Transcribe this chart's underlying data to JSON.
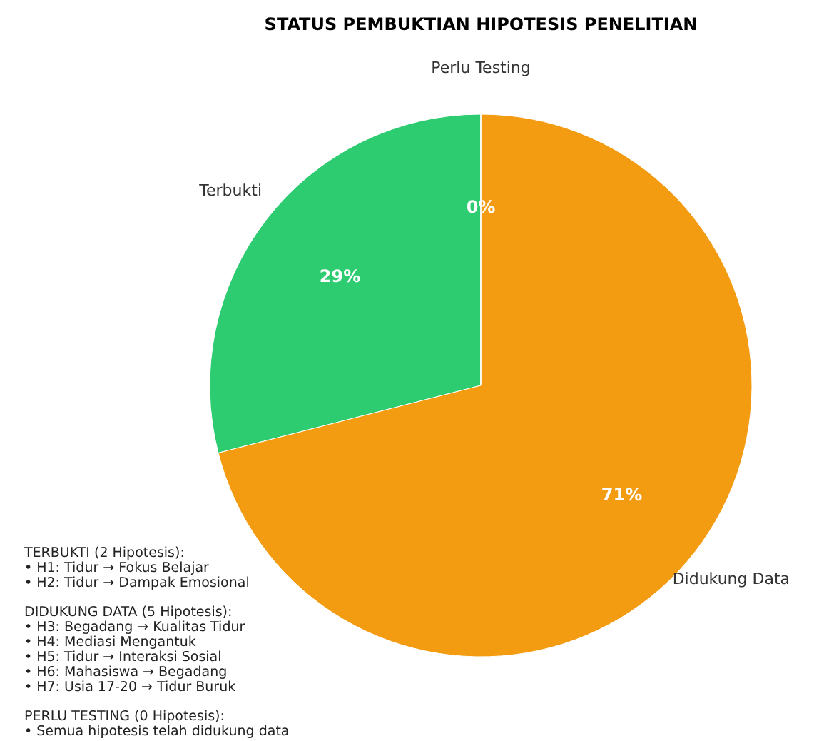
{
  "chart_data": {
    "type": "pie",
    "title": "STATUS PEMBUKTIAN HIPOTESIS PENELITIAN",
    "categories": [
      "Terbukti",
      "Didukung Data",
      "Perlu Testing"
    ],
    "values": [
      29,
      71,
      0
    ],
    "colors": [
      "#2ecc71",
      "#f39c12",
      "#e74c3c"
    ],
    "value_labels": [
      "29%",
      "71%",
      "0%"
    ],
    "legend": false,
    "annotations": [
      "TERBUKTI (2 Hipotesis):\n• H1: Tidur → Fokus Belajar\n• H2: Tidur → Dampak Emosional",
      "DIDUKUNG DATA (5 Hipotesis):\n• H3: Begadang → Kualitas Tidur\n• H4: Mediasi Mengantuk\n• H5: Tidur → Interaksi Sosial\n• H6: Mahasiswa → Begadang\n• H7: Usia 17-20 → Tidur Buruk",
      "PERLU TESTING (0 Hipotesis):\n• Semua hipotesis telah didukung data"
    ]
  }
}
